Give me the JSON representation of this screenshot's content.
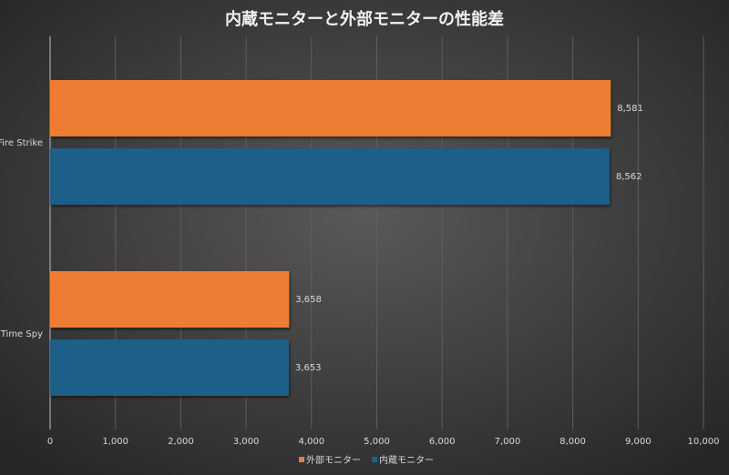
{
  "chart_data": {
    "type": "hbar",
    "title": "内蔵モニターと外部モニターの性能差",
    "categories": [
      "Fire Strike",
      "Time Spy"
    ],
    "series": [
      {
        "name": "外部モニター",
        "color": "#ed7d31",
        "values": [
          8581,
          3658
        ],
        "value_labels": [
          "8,581",
          "3,658"
        ]
      },
      {
        "name": "内蔵モニター",
        "color": "#1d6189",
        "values": [
          8562,
          3653
        ],
        "value_labels": [
          "8,562",
          "3,653"
        ]
      }
    ],
    "xlim": [
      0,
      10000
    ],
    "xticks": [
      0,
      {
        "value": 1000,
        "label": "1,000"
      },
      {
        "value": 2000,
        "label": "2,000"
      },
      {
        "value": 3000,
        "label": "3,000"
      },
      {
        "value": 4000,
        "label": "4,000"
      },
      {
        "value": 5000,
        "label": "5,000"
      },
      {
        "value": 6000,
        "label": "6,000"
      },
      {
        "value": 7000,
        "label": "7,000"
      },
      {
        "value": 8000,
        "label": "8,000"
      },
      {
        "value": 9000,
        "label": "9,000"
      },
      {
        "value": 10000,
        "label": "10,000"
      }
    ],
    "grid": true,
    "legend": "bottom"
  }
}
